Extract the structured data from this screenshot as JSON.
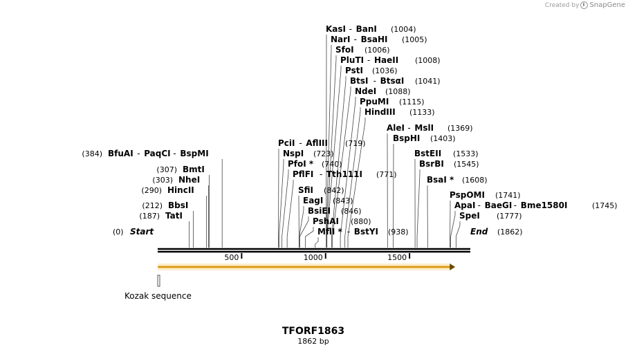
{
  "credit": {
    "created_by": "Created by",
    "brand": "SnapGene",
    "icon": "snapgene-logo-icon"
  },
  "plasmid": {
    "name": "TFORF1863",
    "length_label": "1862 bp",
    "length": 1862
  },
  "ends": {
    "start": {
      "label": "Start",
      "pos_label": "(0)"
    },
    "end": {
      "label": "End",
      "pos_label": "(1862)"
    }
  },
  "ruler": {
    "ticks": [
      500,
      1000,
      1500
    ],
    "labels": [
      "500",
      "1000",
      "1500"
    ]
  },
  "features": [
    {
      "name": "orf",
      "type": "orf",
      "start": 1,
      "end": 1764,
      "color": "#f0a818"
    },
    {
      "name": "Kozak sequence",
      "type": "misc",
      "start": 1,
      "end": 10,
      "color": "#ffffff"
    }
  ],
  "sites": [
    {
      "pos": 0,
      "names": [
        "Start"
      ],
      "pos_label": "(0)",
      "italic": true
    },
    {
      "pos": 187,
      "names": [
        "TatI"
      ],
      "pos_label": "(187)"
    },
    {
      "pos": 212,
      "names": [
        "BbsI"
      ],
      "pos_label": "(212)"
    },
    {
      "pos": 290,
      "names": [
        "HincII"
      ],
      "pos_label": "(290)"
    },
    {
      "pos": 303,
      "names": [
        "NheI"
      ],
      "pos_label": "(303)"
    },
    {
      "pos": 307,
      "names": [
        "BmtI"
      ],
      "pos_label": "(307)"
    },
    {
      "pos": 384,
      "names": [
        "BfuAI",
        "PaqCI",
        "BspMI"
      ],
      "pos_label": "(384)"
    },
    {
      "pos": 719,
      "names": [
        "PciI",
        "AflIII"
      ],
      "pos_label": "(719)"
    },
    {
      "pos": 723,
      "names": [
        "NspI"
      ],
      "pos_label": "(723)"
    },
    {
      "pos": 740,
      "names": [
        "PfoI *"
      ],
      "pos_label": "(740)"
    },
    {
      "pos": 771,
      "names": [
        "PflFI",
        "Tth111I"
      ],
      "pos_label": "(771)"
    },
    {
      "pos": 842,
      "names": [
        "SfiI"
      ],
      "pos_label": "(842)"
    },
    {
      "pos": 843,
      "names": [
        "EagI"
      ],
      "pos_label": "(843)"
    },
    {
      "pos": 846,
      "names": [
        "BsiEI"
      ],
      "pos_label": "(846)"
    },
    {
      "pos": 880,
      "names": [
        "PshAI"
      ],
      "pos_label": "(880)"
    },
    {
      "pos": 938,
      "names": [
        "MflI *",
        "BstYI"
      ],
      "pos_label": "(938)"
    },
    {
      "pos": 1004,
      "names": [
        "KasI",
        "BanI"
      ],
      "pos_label": "(1004)"
    },
    {
      "pos": 1005,
      "names": [
        "NarI",
        "BsaHI"
      ],
      "pos_label": "(1005)"
    },
    {
      "pos": 1006,
      "names": [
        "SfoI"
      ],
      "pos_label": "(1006)"
    },
    {
      "pos": 1008,
      "names": [
        "PluTI",
        "HaeII"
      ],
      "pos_label": "(1008)"
    },
    {
      "pos": 1036,
      "names": [
        "PstI"
      ],
      "pos_label": "(1036)"
    },
    {
      "pos": 1041,
      "names": [
        "BtsI",
        "BtsαI"
      ],
      "pos_label": "(1041)"
    },
    {
      "pos": 1088,
      "names": [
        "NdeI"
      ],
      "pos_label": "(1088)"
    },
    {
      "pos": 1115,
      "names": [
        "PpuMI"
      ],
      "pos_label": "(1115)"
    },
    {
      "pos": 1133,
      "names": [
        "HindIII"
      ],
      "pos_label": "(1133)"
    },
    {
      "pos": 1369,
      "names": [
        "AleI",
        "MslI"
      ],
      "pos_label": "(1369)"
    },
    {
      "pos": 1403,
      "names": [
        "BspHI"
      ],
      "pos_label": "(1403)"
    },
    {
      "pos": 1533,
      "names": [
        "BstEII"
      ],
      "pos_label": "(1533)"
    },
    {
      "pos": 1545,
      "names": [
        "BsrBI"
      ],
      "pos_label": "(1545)"
    },
    {
      "pos": 1608,
      "names": [
        "BsaI *"
      ],
      "pos_label": "(1608)"
    },
    {
      "pos": 1741,
      "names": [
        "PspOMI"
      ],
      "pos_label": "(1741)"
    },
    {
      "pos": 1745,
      "names": [
        "ApaI",
        "BaeGI",
        "Bme1580I"
      ],
      "pos_label": "(1745)"
    },
    {
      "pos": 1777,
      "names": [
        "SpeI"
      ],
      "pos_label": "(1777)"
    },
    {
      "pos": 1862,
      "names": [
        "End"
      ],
      "pos_label": "(1862)",
      "italic": true
    }
  ]
}
